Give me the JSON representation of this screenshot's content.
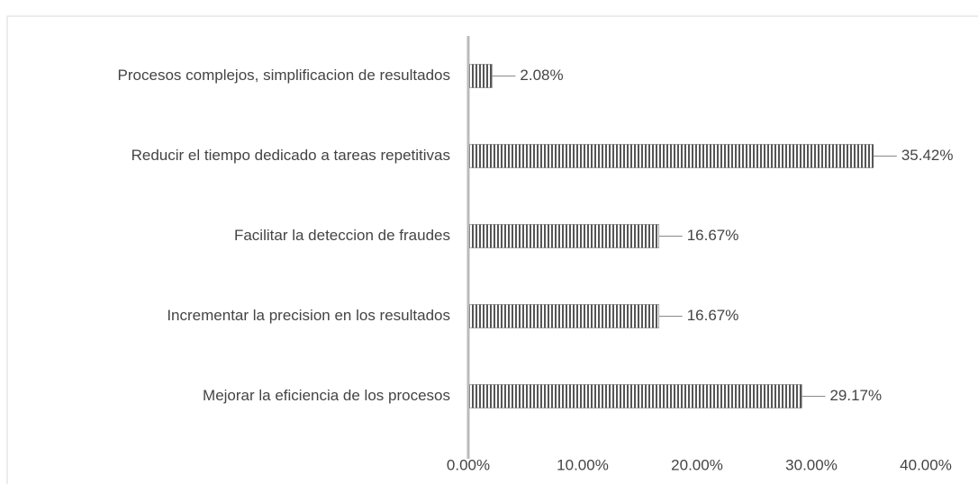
{
  "chart_data": {
    "type": "bar",
    "orientation": "horizontal",
    "categories": [
      "Procesos complejos, simplificacion de resultados",
      "Reducir el tiempo dedicado a tareas repetitivas",
      "Facilitar la deteccion de fraudes",
      "Incrementar la precision en los resultados",
      "Mejorar la eficiencia de los procesos"
    ],
    "values": [
      2.08,
      35.42,
      16.67,
      16.67,
      29.17
    ],
    "value_labels": [
      "2.08%",
      "35.42%",
      "16.67%",
      "16.67%",
      "29.17%"
    ],
    "color": "#555555",
    "xlim": [
      0,
      40
    ],
    "xticks": [
      {
        "value": 0,
        "label": "0.00%"
      },
      {
        "value": 10,
        "label": "10.00%"
      },
      {
        "value": 20,
        "label": "20.00%"
      },
      {
        "value": 30,
        "label": "30.00%"
      },
      {
        "value": 40,
        "label": "40.00%"
      }
    ],
    "grid": false
  }
}
